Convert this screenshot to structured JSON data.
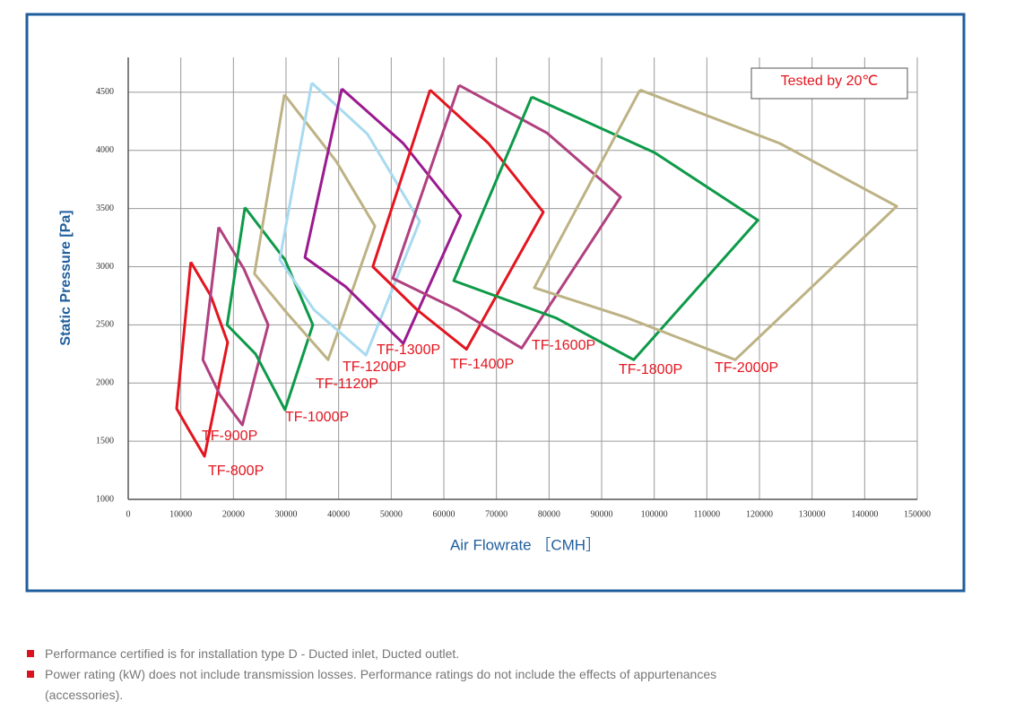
{
  "chart_data": {
    "type": "line",
    "xlabel": "Air Flowrate ［CMH］",
    "ylabel": "Static Pressure [Pa]",
    "annotation": "Tested  by 20℃",
    "xlim": [
      0,
      150000
    ],
    "ylim": [
      1000,
      4800
    ],
    "xticks": [
      0,
      10000,
      20000,
      30000,
      40000,
      50000,
      60000,
      70000,
      80000,
      90000,
      100000,
      110000,
      120000,
      130000,
      140000,
      150000
    ],
    "yticks": [
      1000,
      1500,
      2000,
      2500,
      3000,
      3500,
      4000,
      4500
    ],
    "grid": true,
    "series": [
      {
        "name": "TF-800P",
        "color": "#e3151f",
        "x": [
          11900,
          15700,
          18900,
          14500,
          11500,
          9200,
          11900
        ],
        "y": [
          3040,
          2750,
          2350,
          1370,
          1600,
          1780,
          3040
        ]
      },
      {
        "name": "TF-900P",
        "color": "#b0407f",
        "x": [
          17200,
          22000,
          26600,
          21700,
          17400,
          14200,
          17200
        ],
        "y": [
          3340,
          2980,
          2500,
          1640,
          1900,
          2200,
          3340
        ]
      },
      {
        "name": "TF-1000P",
        "color": "#0d9a48",
        "x": [
          22200,
          29800,
          35100,
          29800,
          24200,
          18800,
          22200
        ],
        "y": [
          3510,
          3060,
          2500,
          1770,
          2250,
          2500,
          3510
        ]
      },
      {
        "name": "TF-1120P",
        "color": "#bdb284",
        "x": [
          29700,
          39500,
          46900,
          38000,
          30200,
          24000,
          29700
        ],
        "y": [
          4480,
          3910,
          3350,
          2200,
          2600,
          2940,
          4480
        ]
      },
      {
        "name": "TF-1200P",
        "color": "#a8daf0",
        "x": [
          34900,
          45500,
          55400,
          45200,
          35300,
          28800,
          34900
        ],
        "y": [
          4580,
          4140,
          3390,
          2240,
          2630,
          3060,
          4580
        ]
      },
      {
        "name": "TF-1300P",
        "color": "#9a1a8f",
        "x": [
          40600,
          52300,
          63200,
          52300,
          41300,
          33600,
          40600
        ],
        "y": [
          4530,
          4060,
          3440,
          2340,
          2830,
          3080,
          4530
        ]
      },
      {
        "name": "TF-1400P",
        "color": "#e3151f",
        "x": [
          57400,
          68500,
          78900,
          64300,
          54900,
          46500,
          57400
        ],
        "y": [
          4520,
          4060,
          3470,
          2290,
          2630,
          3000,
          4520
        ]
      },
      {
        "name": "TF-1600P",
        "color": "#b0407f",
        "x": [
          62900,
          79600,
          93600,
          74800,
          62600,
          50300,
          62900
        ],
        "y": [
          4560,
          4150,
          3600,
          2300,
          2630,
          2900,
          4560
        ]
      },
      {
        "name": "TF-1800P",
        "color": "#0d9a48",
        "x": [
          76700,
          100100,
          119700,
          96100,
          81300,
          61900,
          76700
        ],
        "y": [
          4460,
          3980,
          3400,
          2200,
          2560,
          2880,
          4460
        ]
      },
      {
        "name": "TF-2000P",
        "color": "#bdb284",
        "x": [
          97300,
          123900,
          146100,
          115400,
          94900,
          77200,
          97300
        ],
        "y": [
          4520,
          4060,
          3520,
          2200,
          2560,
          2820,
          4520
        ]
      }
    ]
  },
  "notes": [
    "Performance certified is for installation type D - Ducted inlet, Ducted outlet.",
    "Power rating (kW) does not include transmission losses. Performance ratings do not include the effects of appurtenances (accessories)."
  ]
}
